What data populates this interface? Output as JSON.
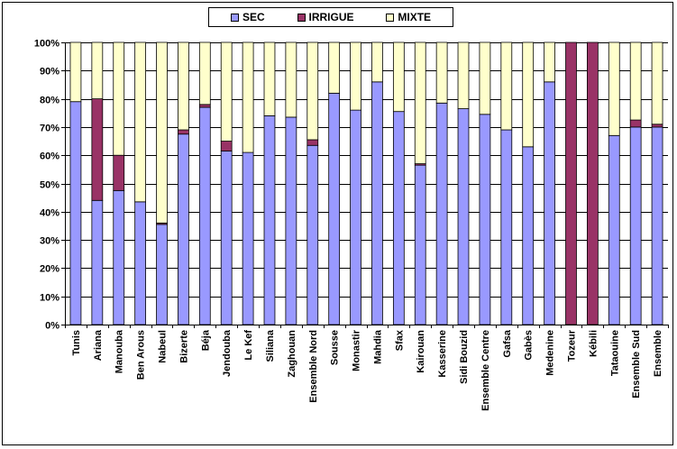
{
  "legend": {
    "sec_label": "SEC",
    "irrigue_label": "IRRIGUE",
    "mixte_label": "MIXTE"
  },
  "colors": {
    "sec": "#9999ff",
    "irrigue": "#993366",
    "mixte": "#ffffcc",
    "grid": "#000000"
  },
  "chart_data": {
    "type": "bar",
    "stacked": true,
    "percent": true,
    "categories": [
      "Tunis",
      "Ariana",
      "Manouba",
      "Ben Arous",
      "Nabeul",
      "Bizerte",
      "Béja",
      "Jendouba",
      "Le Kef",
      "Siliana",
      "Zaghouan",
      "Ensemble Nord",
      "Sousse",
      "Monastir",
      "Mahdia",
      "Sfax",
      "Kairouan",
      "Kasserine",
      "Sidi Bouzid",
      "Ensemble Centre",
      "Gafsa",
      "Gabès",
      "Medenine",
      "Tozeur",
      "Kébili",
      "Tataouine",
      "Ensemble Sud",
      "Ensemble"
    ],
    "series": [
      {
        "name": "SEC",
        "values": [
          79,
          44,
          47.5,
          43.5,
          35.5,
          67.5,
          77,
          61.5,
          61,
          74,
          73.5,
          63.5,
          82,
          76,
          86,
          75.5,
          56.5,
          78.5,
          76.5,
          74.5,
          69,
          63,
          86,
          0,
          0,
          67,
          70,
          70
        ]
      },
      {
        "name": "IRRIGUE",
        "values": [
          0,
          36,
          12.5,
          0,
          0.5,
          1.5,
          1,
          3.5,
          0,
          0,
          0,
          2,
          0,
          0,
          0,
          0,
          0.5,
          0,
          0,
          0,
          0,
          0,
          0,
          100,
          100,
          0,
          2.5,
          1
        ]
      },
      {
        "name": "MIXTE",
        "values": [
          21,
          20,
          40,
          56.5,
          64,
          31,
          22,
          35,
          39,
          26,
          26.5,
          34.5,
          18,
          24,
          14,
          24.5,
          43,
          21.5,
          23.5,
          25.5,
          31,
          37,
          14,
          0,
          0,
          33,
          27.5,
          29
        ]
      }
    ],
    "yticks": [
      "0%",
      "10%",
      "20%",
      "30%",
      "40%",
      "50%",
      "60%",
      "70%",
      "80%",
      "90%",
      "100%"
    ],
    "ylim": [
      0,
      100
    ],
    "grid": true,
    "legend_position": "top"
  }
}
